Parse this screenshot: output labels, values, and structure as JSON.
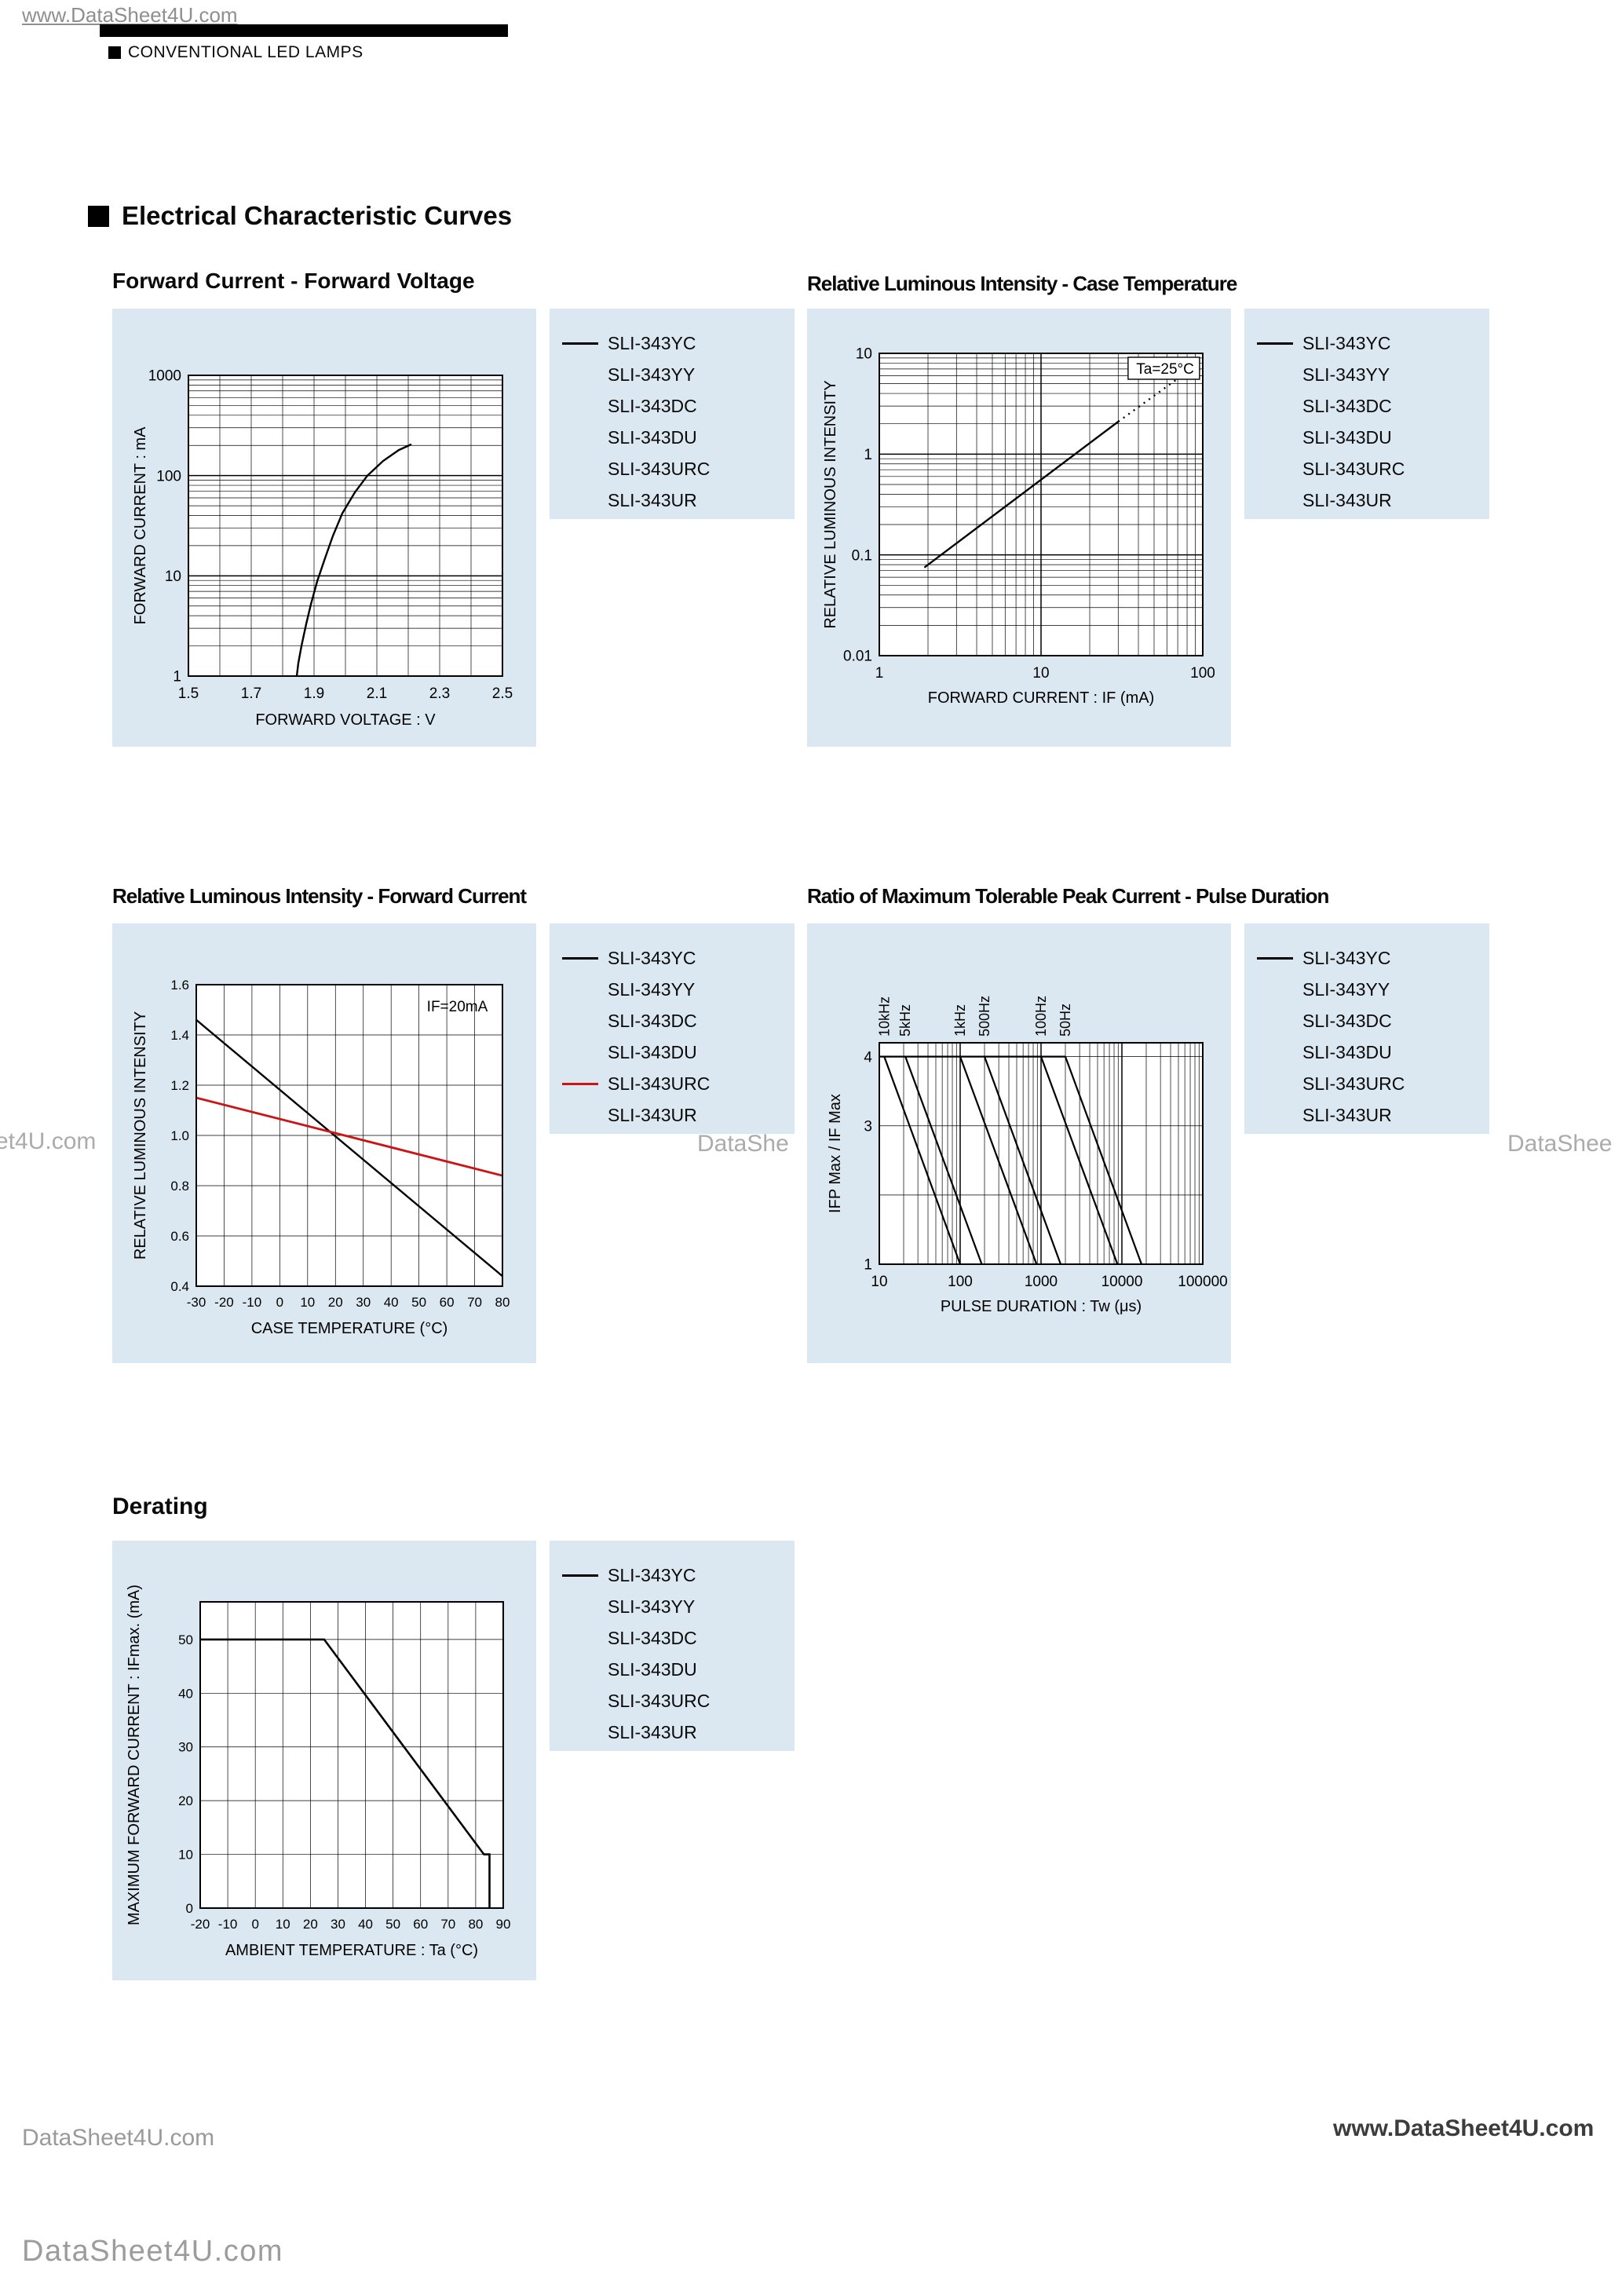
{
  "page": {
    "header": {
      "watermark_top": "www.DataSheet4U.com",
      "category": "CONVENTIONAL LED LAMPS",
      "section_title": "Electrical Characteristic Curves"
    },
    "watermarks": {
      "mid_left": "et4U.com",
      "mid_center": "DataShe",
      "mid_right": "DataShee",
      "bottom_left": "DataSheet4U.com",
      "bottom_right": "www.DataSheet4U.com",
      "footer": "DataSheet4U.com"
    },
    "colors": {
      "panel_bg": "#dce8f1",
      "accent_red": "#cc1414",
      "ink": "#000000"
    }
  },
  "legends": [
    {
      "items": [
        {
          "label": "SLI-343YC",
          "swatch": "#000000"
        },
        {
          "label": "SLI-343YY",
          "swatch": null
        },
        {
          "label": "SLI-343DC",
          "swatch": null
        },
        {
          "label": "SLI-343DU",
          "swatch": null
        },
        {
          "label": "SLI-343URC",
          "swatch": null
        },
        {
          "label": "SLI-343UR",
          "swatch": null
        }
      ]
    },
    {
      "items": [
        {
          "label": "SLI-343YC",
          "swatch": "#000000"
        },
        {
          "label": "SLI-343YY",
          "swatch": null
        },
        {
          "label": "SLI-343DC",
          "swatch": null
        },
        {
          "label": "SLI-343DU",
          "swatch": null
        },
        {
          "label": "SLI-343URC",
          "swatch": null
        },
        {
          "label": "SLI-343UR",
          "swatch": null
        }
      ]
    },
    {
      "items": [
        {
          "label": "SLI-343YC",
          "swatch": "#000000"
        },
        {
          "label": "SLI-343YY",
          "swatch": null
        },
        {
          "label": "SLI-343DC",
          "swatch": null
        },
        {
          "label": "SLI-343DU",
          "swatch": null
        },
        {
          "label": "SLI-343URC",
          "swatch": "#cc1414"
        },
        {
          "label": "SLI-343UR",
          "swatch": null
        }
      ]
    },
    {
      "items": [
        {
          "label": "SLI-343YC",
          "swatch": "#000000"
        },
        {
          "label": "SLI-343YY",
          "swatch": null
        },
        {
          "label": "SLI-343DC",
          "swatch": null
        },
        {
          "label": "SLI-343DU",
          "swatch": null
        },
        {
          "label": "SLI-343URC",
          "swatch": null
        },
        {
          "label": "SLI-343UR",
          "swatch": null
        }
      ]
    },
    {
      "items": [
        {
          "label": "SLI-343YC",
          "swatch": "#000000"
        },
        {
          "label": "SLI-343YY",
          "swatch": null
        },
        {
          "label": "SLI-343DC",
          "swatch": null
        },
        {
          "label": "SLI-343DU",
          "swatch": null
        },
        {
          "label": "SLI-343URC",
          "swatch": null
        },
        {
          "label": "SLI-343UR",
          "swatch": null
        }
      ]
    }
  ],
  "chart_data": [
    {
      "type": "line",
      "title": "Forward Current - Forward Voltage",
      "xlabel": "FORWARD VOLTAGE : V",
      "ylabel": "FORWARD CURRENT : mA",
      "x": {
        "scale": "linear",
        "min": 1.5,
        "max": 2.5,
        "grid_step": 0.1,
        "ticks": [
          "1.5",
          "1.7",
          "1.9",
          "2.1",
          "2.3",
          "2.5"
        ]
      },
      "y": {
        "scale": "log",
        "min": 1,
        "max": 1000,
        "ticks": [
          "1",
          "10",
          "100",
          "1000"
        ]
      },
      "series": [
        {
          "name": "IF-VF",
          "color": "#000000",
          "width": 2.4,
          "points": [
            [
              1.845,
              1
            ],
            [
              1.85,
              1.35
            ],
            [
              1.86,
              2
            ],
            [
              1.875,
              3.3
            ],
            [
              1.89,
              5.2
            ],
            [
              1.91,
              8.8
            ],
            [
              1.935,
              15
            ],
            [
              1.96,
              25
            ],
            [
              1.99,
              42
            ],
            [
              2.03,
              68
            ],
            [
              2.07,
              100
            ],
            [
              2.12,
              140
            ],
            [
              2.17,
              180
            ],
            [
              2.21,
              205
            ]
          ]
        }
      ],
      "layout": {
        "pl": 97,
        "pt": 85,
        "pw": 400,
        "ph": 383,
        "ylab_x": 42,
        "xlab_dy": 62,
        "tick_font": 19
      }
    },
    {
      "type": "line",
      "title": "Relative Luminous Intensity - Case Temperature",
      "xlabel": "FORWARD CURRENT : IF (mA)",
      "ylabel": "RELATIVE LUMINOUS INTENSITY",
      "x": {
        "scale": "log",
        "min": 1,
        "max": 100,
        "ticks": [
          "1",
          "10",
          "100"
        ]
      },
      "y": {
        "scale": "log",
        "min": 0.01,
        "max": 10,
        "ticks": [
          "0.01",
          "0.1",
          "1",
          "10"
        ]
      },
      "annotation": {
        "text": "Ta=25°C",
        "fx": 0.99,
        "dy": 26,
        "box": true
      },
      "series": [
        {
          "name": "relative-intensity",
          "color": "#000000",
          "width": 2.4,
          "points": [
            [
              1.9,
              0.075
            ],
            [
              30,
              2.1
            ]
          ]
        },
        {
          "name": "relative-intensity-extrapolated",
          "color": "#000000",
          "width": 2.4,
          "dash": "2 6",
          "points": [
            [
              30,
              2.1
            ],
            [
              90,
              7.5
            ]
          ]
        }
      ],
      "layout": {
        "pl": 92,
        "pt": 57,
        "pw": 412,
        "ph": 385,
        "ylab_x": 36,
        "xlab_dy": 60,
        "tick_font": 19
      }
    },
    {
      "type": "line",
      "title": "Relative Luminous Intensity - Forward Current",
      "xlabel": "CASE TEMPERATURE (°C)",
      "ylabel": "RELATIVE LUMINOUS INTENSITY",
      "x": {
        "scale": "linear",
        "min": -30,
        "max": 80,
        "grid_step": 10,
        "ticks": [
          "-30",
          "-20",
          "-10",
          "0",
          "10",
          "20",
          "30",
          "40",
          "50",
          "60",
          "70",
          "80"
        ]
      },
      "y": {
        "scale": "linear",
        "min": 0.4,
        "max": 1.6,
        "grid_step": 0.2,
        "ticks": [
          "0.4",
          "0.6",
          "0.8",
          "1.0",
          "1.2",
          "1.4",
          "1.6"
        ]
      },
      "annotation": {
        "text": "IF=20mA",
        "fx": 0.97,
        "dy": 34,
        "box": false
      },
      "series": [
        {
          "name": "standard-types",
          "color": "#000000",
          "width": 2.4,
          "points": [
            [
              -30,
              1.46
            ],
            [
              80,
              0.44
            ]
          ]
        },
        {
          "name": "SLI-343URC",
          "color": "#cc1414",
          "width": 2.8,
          "points": [
            [
              -30,
              1.15
            ],
            [
              80,
              0.84
            ]
          ]
        }
      ],
      "layout": {
        "pl": 107,
        "pt": 78,
        "pw": 390,
        "ph": 384,
        "ylab_x": 42,
        "xlab_dy": 60,
        "tick_font": 17
      }
    },
    {
      "type": "line",
      "title": "Ratio of Maximum Tolerable Peak Current - Pulse Duration",
      "xlabel": "PULSE DURATION : Tw (μs)",
      "ylabel": "IFP Max / IF Max",
      "x": {
        "scale": "log",
        "min": 10,
        "max": 100000,
        "ticks": [
          "10",
          "100",
          "1000",
          "10000",
          "100000"
        ]
      },
      "y": {
        "scale": "linear",
        "min": 1,
        "max": 4.2,
        "grid_step": 1,
        "ticks": [
          "1",
          "3",
          "4"
        ]
      },
      "curve_labels": [
        {
          "text": "10kHz",
          "x": 11.5
        },
        {
          "text": "5kHz",
          "x": 21
        },
        {
          "text": "1kHz",
          "x": 100
        },
        {
          "text": "500Hz",
          "x": 200
        },
        {
          "text": "100Hz",
          "x": 1000
        },
        {
          "text": "50Hz",
          "x": 2000
        }
      ],
      "series": [
        {
          "name": "plateau",
          "color": "#000000",
          "width": 2.2,
          "points": [
            [
              10,
              4
            ],
            [
              2000,
              4
            ]
          ]
        },
        {
          "name": "10kHz",
          "color": "#000000",
          "width": 2.2,
          "points": [
            [
              11.5,
              4
            ],
            [
              100,
              1
            ]
          ]
        },
        {
          "name": "5kHz",
          "color": "#000000",
          "width": 2.2,
          "points": [
            [
              21,
              4
            ],
            [
              185,
              1
            ]
          ]
        },
        {
          "name": "1kHz",
          "color": "#000000",
          "width": 2.2,
          "points": [
            [
              100,
              4
            ],
            [
              880,
              1
            ]
          ]
        },
        {
          "name": "500Hz",
          "color": "#000000",
          "width": 2.2,
          "points": [
            [
              200,
              4
            ],
            [
              1750,
              1
            ]
          ]
        },
        {
          "name": "100Hz",
          "color": "#000000",
          "width": 2.2,
          "points": [
            [
              1000,
              4
            ],
            [
              8800,
              1
            ]
          ]
        },
        {
          "name": "50Hz",
          "color": "#000000",
          "width": 2.2,
          "points": [
            [
              2000,
              4
            ],
            [
              17500,
              1
            ]
          ]
        }
      ],
      "layout": {
        "pl": 92,
        "pt": 152,
        "pw": 412,
        "ph": 282,
        "ylab_x": 42,
        "xlab_dy": 60,
        "tick_font": 19
      }
    },
    {
      "type": "line",
      "title": "Derating",
      "xlabel": "AMBIENT TEMPERATURE : Ta (°C)",
      "ylabel": "MAXIMUM FORWARD CURRENT : IFmax. (mA)",
      "x": {
        "scale": "linear",
        "min": -20,
        "max": 90,
        "grid_step": 10,
        "ticks": [
          "-20",
          "-10",
          "0",
          "10",
          "20",
          "30",
          "40",
          "50",
          "60",
          "70",
          "80",
          "90"
        ]
      },
      "y": {
        "scale": "linear",
        "min": 0,
        "max": 57,
        "grid_step": 10,
        "ticks": [
          "0",
          "10",
          "20",
          "30",
          "40",
          "50"
        ]
      },
      "series": [
        {
          "name": "derating-curve",
          "color": "#000000",
          "width": 2.6,
          "points": [
            [
              -20,
              50
            ],
            [
              25,
              50
            ],
            [
              83,
              10
            ],
            [
              85,
              10
            ],
            [
              85,
              0
            ]
          ]
        }
      ],
      "layout": {
        "pl": 112,
        "pt": 78,
        "pw": 386,
        "ph": 390,
        "ylab_x": 34,
        "xlab_dy": 60,
        "tick_font": 17
      }
    }
  ]
}
